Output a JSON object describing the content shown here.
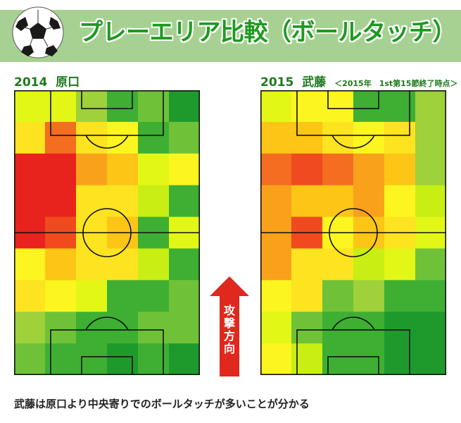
{
  "title": "プレーエリア比較（ボールタッチ）",
  "left_panel": {
    "year": "2014",
    "player": "原口"
  },
  "right_panel": {
    "year": "2015",
    "player": "武藤",
    "note": "＜2015年　1st第15節終了時点＞"
  },
  "arrow_label": [
    "攻",
    "撃",
    "方",
    "向"
  ],
  "caption": "武藤は原口より中央寄りでのボールタッチが多いことが分かる",
  "icon": "soccer-ball-icon",
  "colors": {
    "header_bg": "#a7d192",
    "title": "#1d9a1f",
    "label": "#1d7a1e",
    "arrow": "#e0281e",
    "scale": [
      "#e8221c",
      "#ef4b1f",
      "#f46d21",
      "#f9a11b",
      "#fdc515",
      "#fde320",
      "#fdf51f",
      "#e3f716",
      "#c8ee13",
      "#9ed13a",
      "#6fc238",
      "#3eaf33",
      "#1e9a2d"
    ]
  },
  "heatmaps": {
    "left": [
      [
        7,
        7,
        9,
        11,
        10,
        12
      ],
      [
        5,
        2,
        5,
        6,
        11,
        10
      ],
      [
        0,
        0,
        3,
        4,
        7,
        6
      ],
      [
        0,
        0,
        5,
        5,
        8,
        11
      ],
      [
        0,
        1,
        5,
        4,
        11,
        7
      ],
      [
        6,
        4,
        5,
        5,
        8,
        11
      ],
      [
        5,
        6,
        7,
        11,
        11,
        10
      ],
      [
        9,
        10,
        11,
        11,
        10,
        10
      ],
      [
        10,
        11,
        11,
        12,
        11,
        12
      ]
    ],
    "right": [
      [
        7,
        6,
        6,
        11,
        11,
        9
      ],
      [
        4,
        4,
        5,
        6,
        5,
        9
      ],
      [
        2,
        1,
        2,
        3,
        4,
        9
      ],
      [
        3,
        4,
        4,
        3,
        6,
        8
      ],
      [
        3,
        1,
        6,
        4,
        5,
        7
      ],
      [
        3,
        5,
        5,
        8,
        7,
        10
      ],
      [
        6,
        5,
        10,
        9,
        11,
        11
      ],
      [
        7,
        10,
        11,
        11,
        12,
        12
      ],
      [
        6,
        8,
        11,
        11,
        12,
        12
      ]
    ]
  }
}
